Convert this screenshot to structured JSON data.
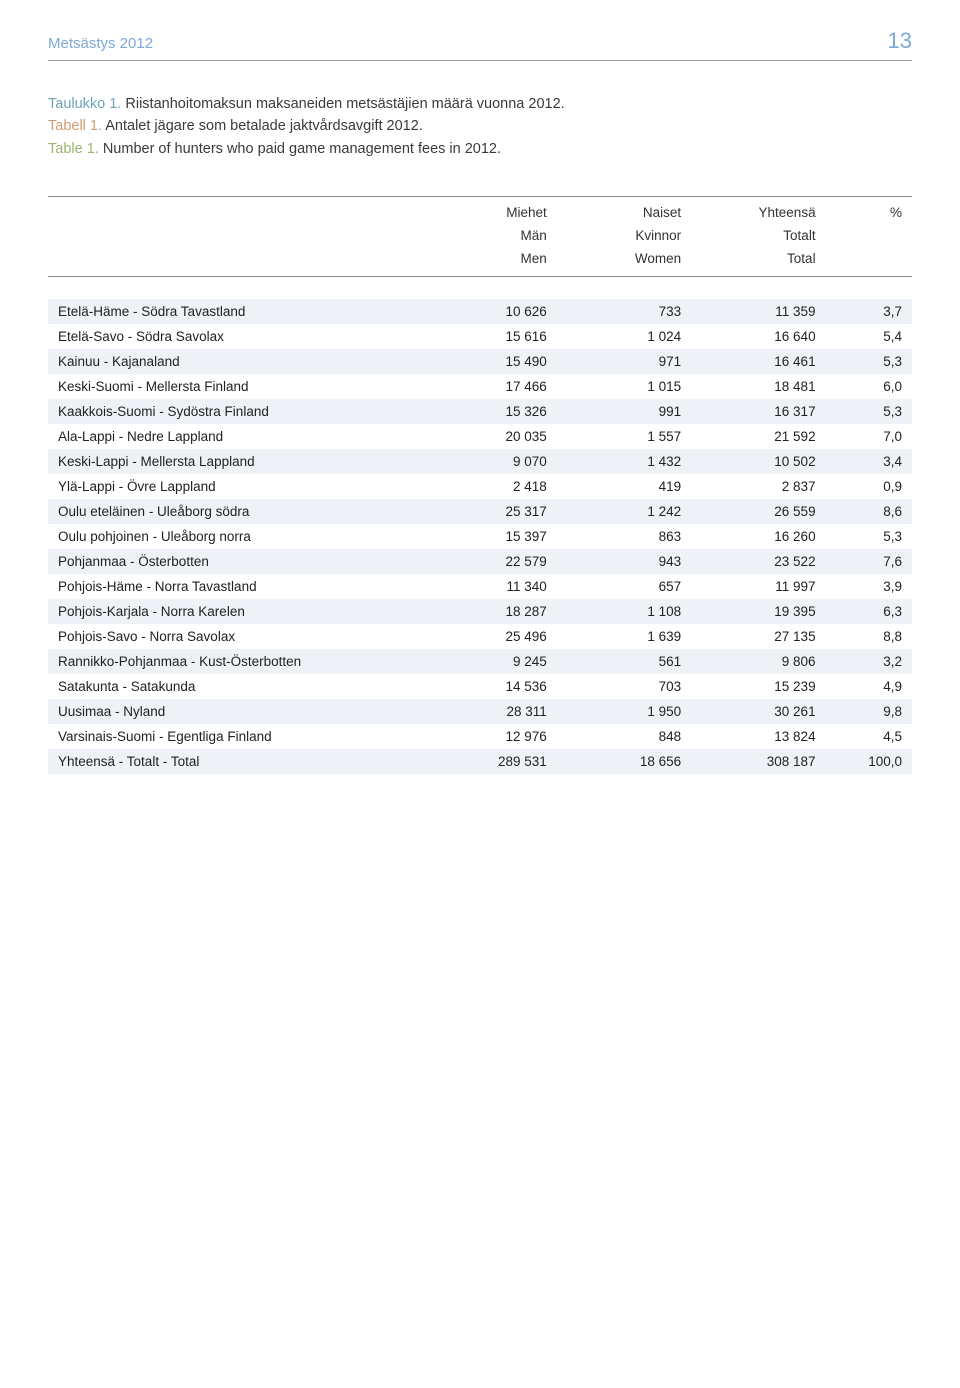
{
  "header": {
    "title": "Metsästys 2012",
    "page": "13"
  },
  "captions": {
    "fi": {
      "label": "Taulukko 1.",
      "text": " Riistanhoitomaksun maksaneiden metsästäjien määrä vuonna 2012."
    },
    "sv": {
      "label": "Tabell 1.",
      "text": " Antalet jägare som betalade jaktvårdsavgift 2012."
    },
    "en": {
      "label": "Table 1.",
      "text": " Number of hunters who paid game management fees in 2012."
    }
  },
  "table": {
    "head": {
      "row1": [
        "",
        "Miehet",
        "Naiset",
        "Yhteensä",
        "%"
      ],
      "row2": [
        "",
        "Män",
        "Kvinnor",
        "Totalt",
        ""
      ],
      "row3": [
        "",
        "Men",
        "Women",
        "Total",
        ""
      ]
    },
    "rows": [
      {
        "label": "Etelä-Häme - Södra Tavastland",
        "v1": "10 626",
        "v2": "733",
        "v3": "11 359",
        "pct": "3,7"
      },
      {
        "label": "Etelä-Savo - Södra Savolax",
        "v1": "15 616",
        "v2": "1 024",
        "v3": "16 640",
        "pct": "5,4"
      },
      {
        "label": "Kainuu - Kajanaland",
        "v1": "15 490",
        "v2": "971",
        "v3": "16 461",
        "pct": "5,3"
      },
      {
        "label": "Keski-Suomi - Mellersta Finland",
        "v1": "17 466",
        "v2": "1 015",
        "v3": "18 481",
        "pct": "6,0"
      },
      {
        "label": "Kaakkois-Suomi - Sydöstra Finland",
        "v1": "15 326",
        "v2": "991",
        "v3": "16 317",
        "pct": "5,3"
      },
      {
        "label": "Ala-Lappi - Nedre Lappland",
        "v1": "20 035",
        "v2": "1 557",
        "v3": "21 592",
        "pct": "7,0"
      },
      {
        "label": "Keski-Lappi - Mellersta Lappland",
        "v1": "9 070",
        "v2": "1 432",
        "v3": "10 502",
        "pct": "3,4"
      },
      {
        "label": "Ylä-Lappi - Övre Lappland",
        "v1": "2 418",
        "v2": "419",
        "v3": "2 837",
        "pct": "0,9"
      },
      {
        "label": "Oulu eteläinen - Uleåborg södra",
        "v1": "25 317",
        "v2": "1 242",
        "v3": "26 559",
        "pct": "8,6"
      },
      {
        "label": "Oulu pohjoinen - Uleåborg norra",
        "v1": "15 397",
        "v2": "863",
        "v3": "16 260",
        "pct": "5,3"
      },
      {
        "label": "Pohjanmaa - Österbotten",
        "v1": "22 579",
        "v2": "943",
        "v3": "23 522",
        "pct": "7,6"
      },
      {
        "label": "Pohjois-Häme - Norra Tavastland",
        "v1": "11 340",
        "v2": "657",
        "v3": "11 997",
        "pct": "3,9"
      },
      {
        "label": "Pohjois-Karjala - Norra Karelen",
        "v1": "18 287",
        "v2": "1 108",
        "v3": "19 395",
        "pct": "6,3"
      },
      {
        "label": "Pohjois-Savo - Norra Savolax",
        "v1": "25 496",
        "v2": "1 639",
        "v3": "27 135",
        "pct": "8,8"
      },
      {
        "label": "Rannikko-Pohjanmaa - Kust-Österbotten",
        "v1": "9 245",
        "v2": "561",
        "v3": "9 806",
        "pct": "3,2"
      },
      {
        "label": "Satakunta - Satakunda",
        "v1": "14 536",
        "v2": "703",
        "v3": "15 239",
        "pct": "4,9"
      },
      {
        "label": "Uusimaa - Nyland",
        "v1": "28 311",
        "v2": "1 950",
        "v3": "30 261",
        "pct": "9,8"
      },
      {
        "label": "Varsinais-Suomi - Egentliga Finland",
        "v1": "12 976",
        "v2": "848",
        "v3": "13 824",
        "pct": "4,5"
      },
      {
        "label": "Yhteensä - Totalt - Total",
        "v1": "289 531",
        "v2": "18 656",
        "v3": "308 187",
        "pct": "100,0"
      }
    ],
    "colors": {
      "stripe": "#eef2f6",
      "border": "#888888",
      "text": "#222222"
    }
  }
}
